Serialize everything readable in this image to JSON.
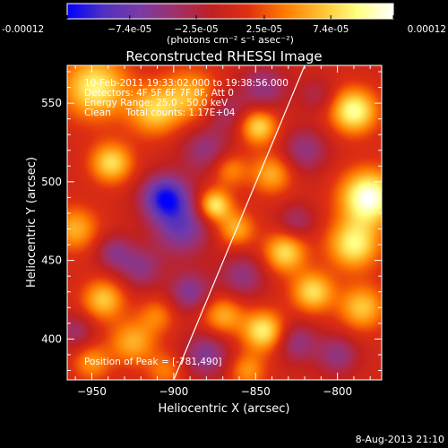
{
  "chart_data": {
    "type": "heatmap",
    "title": "Reconstructed RHESSI Image",
    "xlabel": "Heliocentric X (arcsec)",
    "ylabel": "Heliocentric Y (arcsec)",
    "xlim": [
      -965,
      -773
    ],
    "ylim": [
      374,
      574
    ],
    "x_ticks": [
      -950,
      -900,
      -850,
      -800
    ],
    "y_ticks": [
      400,
      450,
      500,
      550
    ],
    "colorbar": {
      "range": [
        -0.00012,
        0.00012
      ],
      "tick_values": [
        -0.00012,
        -7.4e-05,
        -2.5e-05,
        2.5e-05,
        7.4e-05,
        0.00012
      ],
      "tick_labels": [
        "-0.00012",
        "−7.4e-05",
        "−2.5e-05",
        "2.5e-05",
        "7.4e-05",
        "0.00012"
      ],
      "units_label": "(photons cm⁻² s⁻¹ asec⁻²)",
      "colormap": [
        "#0000ff",
        "#5030c0",
        "#7a3aa5",
        "#a0306a",
        "#c02020",
        "#e03010",
        "#ff7a00",
        "#ffc030",
        "#ffff80",
        "#ffffff"
      ]
    },
    "info_lines": [
      "10-Feb-2011 19:33:02.000 to 19:38:56.000",
      "Detectors: 4F 5F 6F 7F 8F, Att 0",
      "Energy Range: 25.0 - 50.0 keV",
      "Clean     Total counts: 1.17E+04"
    ],
    "peak_label": "Position of Peak = [-781,490]",
    "limb_line": {
      "x": [
        -900,
        -820
      ],
      "y": [
        374,
        574
      ]
    },
    "sources": [
      {
        "x": -948,
        "y": 560,
        "amp": 9e-05,
        "sigma": 14
      },
      {
        "x": -938,
        "y": 512,
        "amp": 8e-05,
        "sigma": 9
      },
      {
        "x": -960,
        "y": 470,
        "amp": 6e-05,
        "sigma": 10
      },
      {
        "x": -936,
        "y": 455,
        "amp": -5e-05,
        "sigma": 8
      },
      {
        "x": -943,
        "y": 425,
        "amp": 7e-05,
        "sigma": 9
      },
      {
        "x": -960,
        "y": 405,
        "amp": -4e-05,
        "sigma": 8
      },
      {
        "x": -925,
        "y": 398,
        "amp": 6e-05,
        "sigma": 10
      },
      {
        "x": -920,
        "y": 445,
        "amp": -5e-05,
        "sigma": 9
      },
      {
        "x": -905,
        "y": 490,
        "amp": -0.00011,
        "sigma": 10
      },
      {
        "x": -895,
        "y": 470,
        "amp": -7e-05,
        "sigma": 12
      },
      {
        "x": -912,
        "y": 545,
        "amp": 7e-05,
        "sigma": 11
      },
      {
        "x": -890,
        "y": 555,
        "amp": 6e-05,
        "sigma": 12
      },
      {
        "x": -880,
        "y": 520,
        "amp": -5e-05,
        "sigma": 11
      },
      {
        "x": -875,
        "y": 485,
        "amp": 9e-05,
        "sigma": 7
      },
      {
        "x": -862,
        "y": 470,
        "amp": 6e-05,
        "sigma": 8
      },
      {
        "x": -866,
        "y": 508,
        "amp": 5e-05,
        "sigma": 8
      },
      {
        "x": -868,
        "y": 545,
        "amp": -4e-05,
        "sigma": 9
      },
      {
        "x": -845,
        "y": 560,
        "amp": -5e-05,
        "sigma": 10
      },
      {
        "x": -848,
        "y": 535,
        "amp": 8e-05,
        "sigma": 8
      },
      {
        "x": -840,
        "y": 505,
        "amp": 6e-05,
        "sigma": 9
      },
      {
        "x": -858,
        "y": 440,
        "amp": -5e-05,
        "sigma": 10
      },
      {
        "x": -832,
        "y": 455,
        "amp": 8e-05,
        "sigma": 9
      },
      {
        "x": -870,
        "y": 415,
        "amp": 6e-05,
        "sigma": 9
      },
      {
        "x": -890,
        "y": 430,
        "amp": -6e-05,
        "sigma": 9
      },
      {
        "x": -880,
        "y": 390,
        "amp": -6e-05,
        "sigma": 10
      },
      {
        "x": -845,
        "y": 405,
        "amp": 9e-05,
        "sigma": 9
      },
      {
        "x": -825,
        "y": 398,
        "amp": -5e-05,
        "sigma": 9
      },
      {
        "x": -815,
        "y": 430,
        "amp": 8e-05,
        "sigma": 9
      },
      {
        "x": -825,
        "y": 475,
        "amp": -4e-05,
        "sigma": 8
      },
      {
        "x": -820,
        "y": 520,
        "amp": -5e-05,
        "sigma": 10
      },
      {
        "x": -812,
        "y": 555,
        "amp": -3e-05,
        "sigma": 8
      },
      {
        "x": -790,
        "y": 545,
        "amp": 0.0001,
        "sigma": 10
      },
      {
        "x": -781,
        "y": 490,
        "amp": 0.00012,
        "sigma": 12
      },
      {
        "x": -790,
        "y": 460,
        "amp": 9e-05,
        "sigma": 11
      },
      {
        "x": -785,
        "y": 420,
        "amp": 7e-05,
        "sigma": 10
      },
      {
        "x": -800,
        "y": 390,
        "amp": -5e-05,
        "sigma": 9
      },
      {
        "x": -950,
        "y": 385,
        "amp": 5e-05,
        "sigma": 8
      },
      {
        "x": -905,
        "y": 380,
        "amp": 4e-05,
        "sigma": 8
      },
      {
        "x": -855,
        "y": 380,
        "amp": 5e-05,
        "sigma": 8
      },
      {
        "x": -910,
        "y": 415,
        "amp": 4e-05,
        "sigma": 8
      }
    ]
  },
  "footer": {
    "date_stamp": "8-Aug-2013 21:10"
  }
}
